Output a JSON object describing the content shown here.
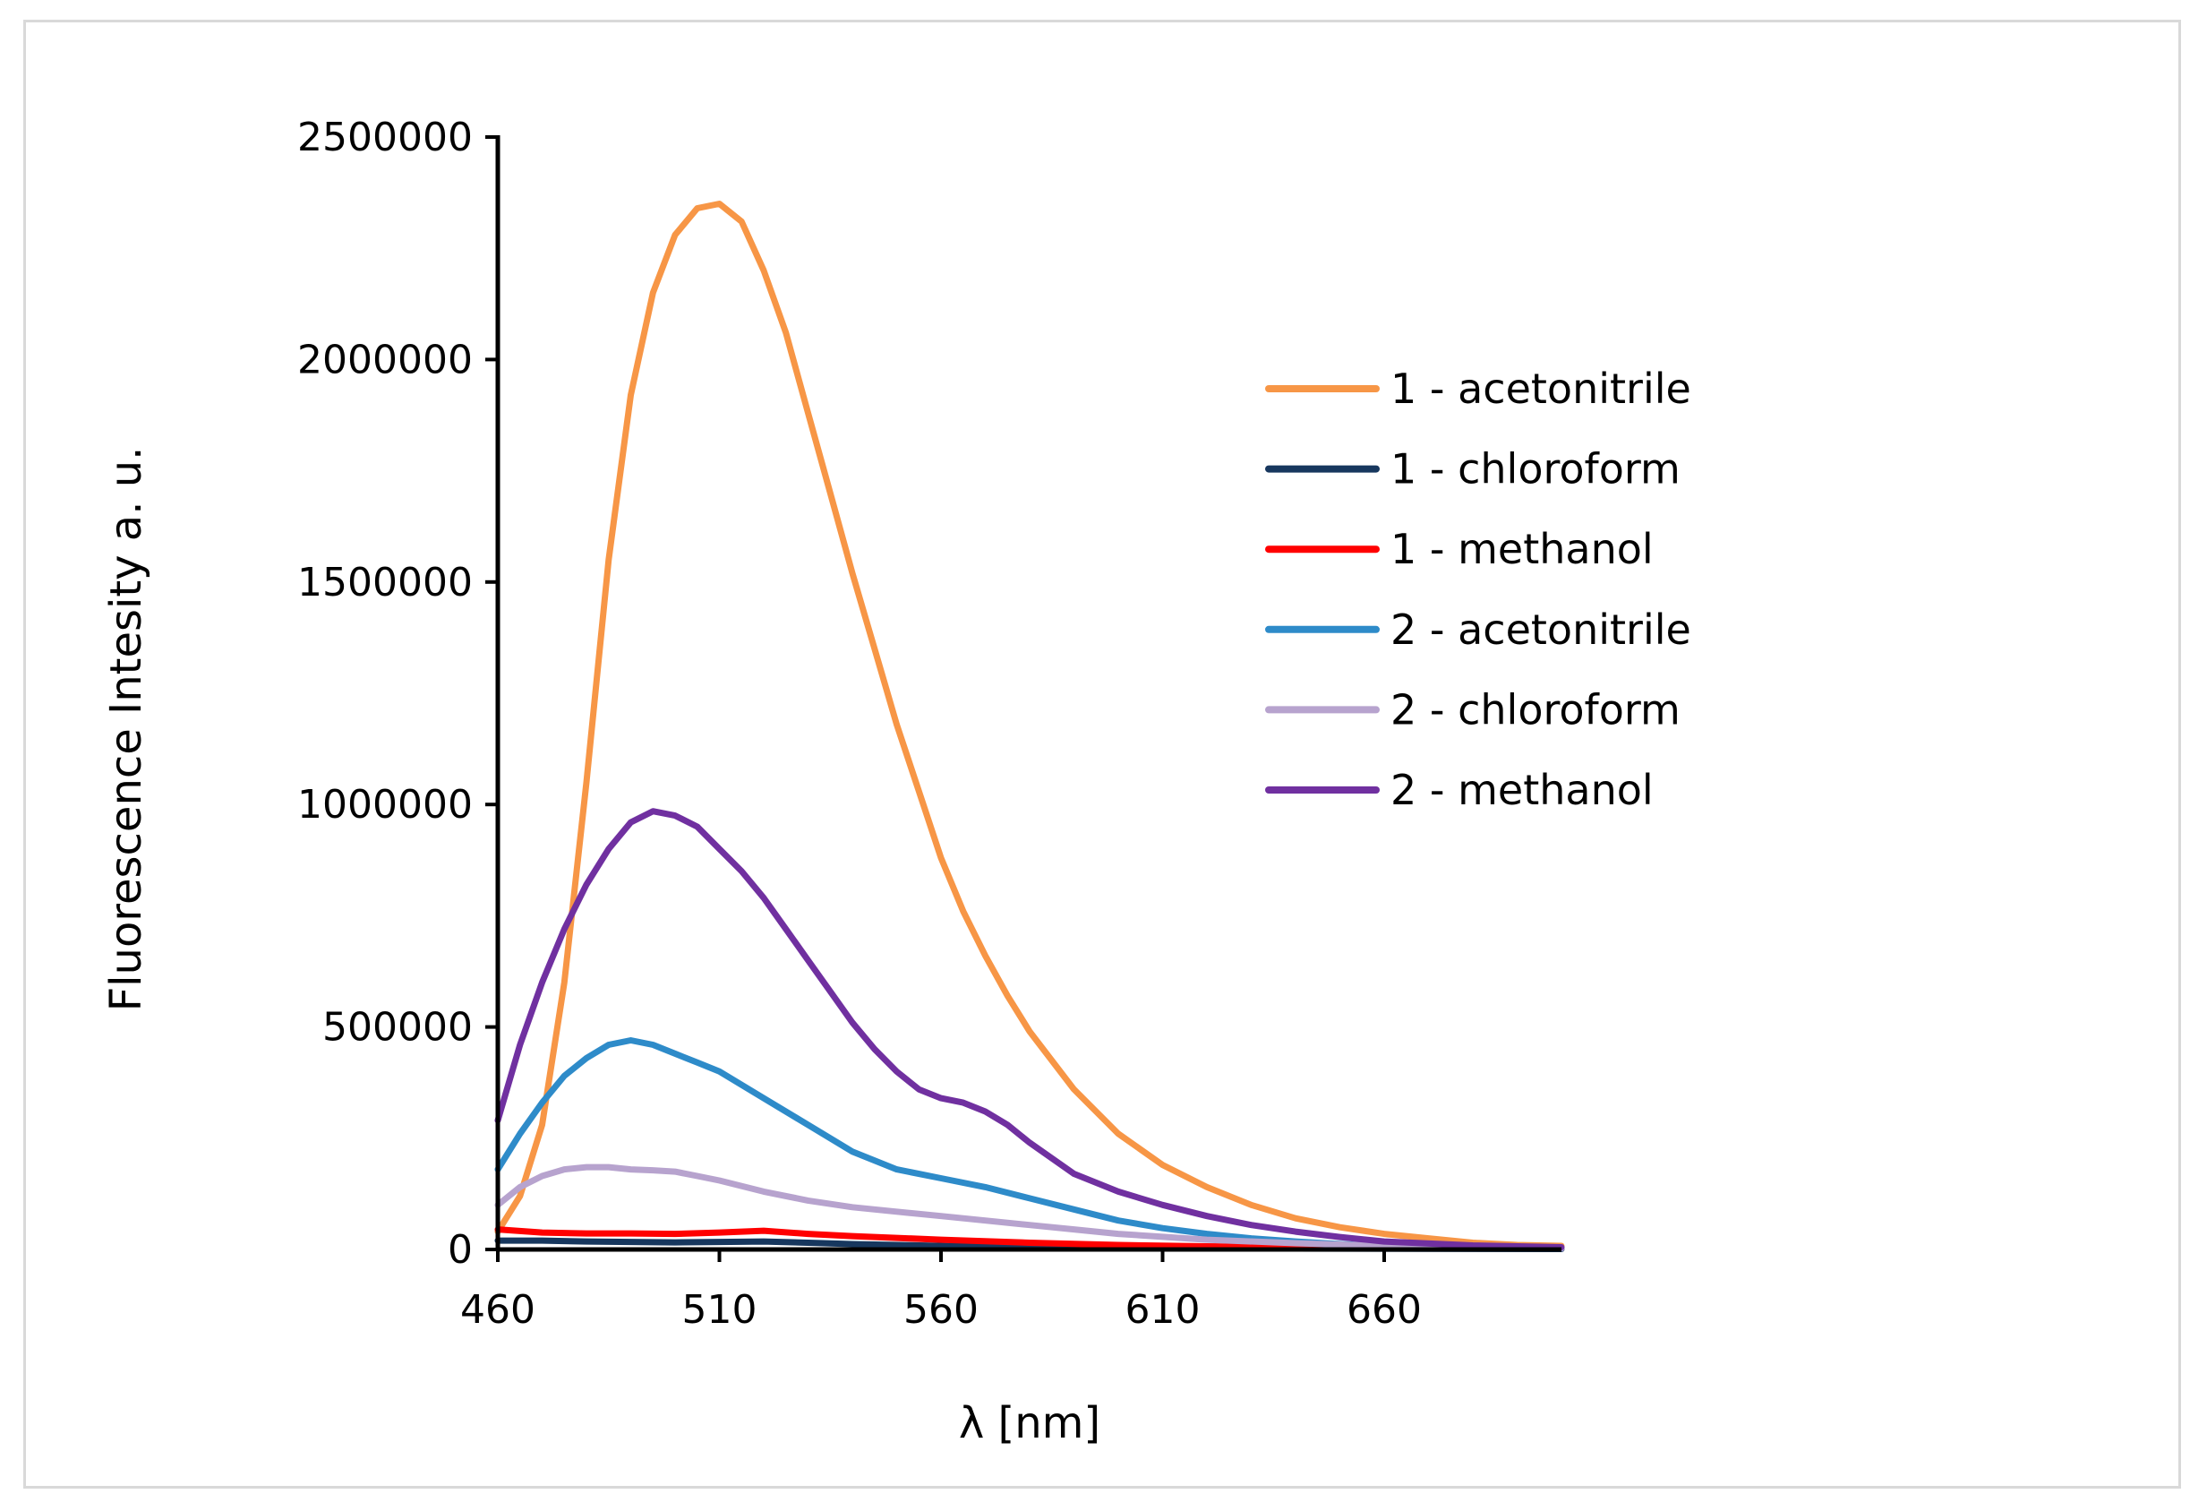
{
  "chart_data": {
    "type": "line",
    "title": "",
    "xlabel": "λ [nm]",
    "ylabel": "Fluorescence  Intesity a. u.",
    "xlim": [
      460,
      700
    ],
    "ylim": [
      0,
      2500000
    ],
    "x_ticks": [
      460,
      510,
      560,
      610,
      660
    ],
    "x_tick_labels": [
      "460",
      "510",
      "560",
      "610",
      "660"
    ],
    "y_ticks": [
      0,
      500000,
      1000000,
      1500000,
      2000000,
      2500000
    ],
    "y_tick_labels": [
      "0",
      "500000",
      "1000000",
      "1500000",
      "2000000",
      "2500000"
    ],
    "grid": false,
    "legend_position": "right",
    "series": [
      {
        "name": "1 - acetonitrile",
        "color": "#f79646",
        "x": [
          460,
          465,
          470,
          475,
          480,
          485,
          490,
          495,
          500,
          505,
          510,
          515,
          520,
          525,
          530,
          535,
          540,
          545,
          550,
          555,
          560,
          565,
          570,
          575,
          580,
          590,
          600,
          610,
          620,
          630,
          640,
          650,
          660,
          670,
          680,
          690,
          700
        ],
        "y": [
          40000,
          120000,
          280000,
          600000,
          1050000,
          1550000,
          1920000,
          2150000,
          2280000,
          2340000,
          2350000,
          2310000,
          2200000,
          2060000,
          1880000,
          1700000,
          1520000,
          1350000,
          1180000,
          1030000,
          880000,
          760000,
          660000,
          570000,
          490000,
          360000,
          260000,
          190000,
          140000,
          100000,
          70000,
          50000,
          35000,
          25000,
          15000,
          10000,
          8000
        ]
      },
      {
        "name": "1 - chloroform",
        "color": "#17375e",
        "x": [
          460,
          470,
          480,
          490,
          500,
          510,
          520,
          530,
          540,
          560,
          580,
          600,
          640,
          700
        ],
        "y": [
          20000,
          20000,
          18000,
          17000,
          16000,
          17000,
          18000,
          15000,
          12000,
          8000,
          5000,
          3000,
          2000,
          1000
        ]
      },
      {
        "name": "1 - methanol",
        "color": "#ff0000",
        "x": [
          460,
          470,
          480,
          490,
          500,
          510,
          520,
          530,
          540,
          550,
          560,
          580,
          600,
          620,
          640,
          660,
          700
        ],
        "y": [
          45000,
          38000,
          36000,
          36000,
          35000,
          38000,
          42000,
          35000,
          30000,
          26000,
          22000,
          15000,
          10000,
          7000,
          5000,
          3000,
          2000
        ]
      },
      {
        "name": "2 - acetonitrile",
        "color": "#2e8bc9",
        "x": [
          460,
          465,
          470,
          475,
          480,
          485,
          490,
          495,
          500,
          505,
          510,
          520,
          530,
          540,
          550,
          560,
          570,
          580,
          590,
          600,
          610,
          620,
          630,
          640,
          650,
          660,
          680,
          700
        ],
        "y": [
          180000,
          260000,
          330000,
          390000,
          430000,
          460000,
          470000,
          460000,
          440000,
          420000,
          400000,
          340000,
          280000,
          220000,
          180000,
          160000,
          140000,
          115000,
          90000,
          65000,
          48000,
          35000,
          25000,
          18000,
          12000,
          8000,
          4000,
          2000
        ]
      },
      {
        "name": "2 - chloroform",
        "color": "#b7a3ce",
        "x": [
          460,
          465,
          470,
          475,
          480,
          485,
          490,
          495,
          500,
          505,
          510,
          520,
          530,
          540,
          550,
          560,
          570,
          580,
          590,
          600,
          620,
          640,
          660,
          680,
          700
        ],
        "y": [
          100000,
          140000,
          165000,
          180000,
          185000,
          185000,
          180000,
          178000,
          175000,
          165000,
          155000,
          130000,
          110000,
          95000,
          85000,
          75000,
          65000,
          55000,
          45000,
          35000,
          22000,
          14000,
          8000,
          5000,
          3000
        ]
      },
      {
        "name": "2 - methanol",
        "color": "#7030a0",
        "x": [
          460,
          465,
          470,
          475,
          480,
          485,
          490,
          495,
          500,
          505,
          510,
          515,
          520,
          525,
          530,
          535,
          540,
          545,
          550,
          555,
          560,
          565,
          570,
          575,
          580,
          590,
          600,
          610,
          620,
          630,
          640,
          650,
          660,
          680,
          700
        ],
        "y": [
          290000,
          460000,
          600000,
          720000,
          820000,
          900000,
          960000,
          985000,
          975000,
          950000,
          900000,
          850000,
          790000,
          720000,
          650000,
          580000,
          510000,
          450000,
          400000,
          360000,
          340000,
          330000,
          310000,
          280000,
          240000,
          170000,
          130000,
          100000,
          75000,
          55000,
          40000,
          28000,
          18000,
          9000,
          5000
        ]
      }
    ]
  }
}
